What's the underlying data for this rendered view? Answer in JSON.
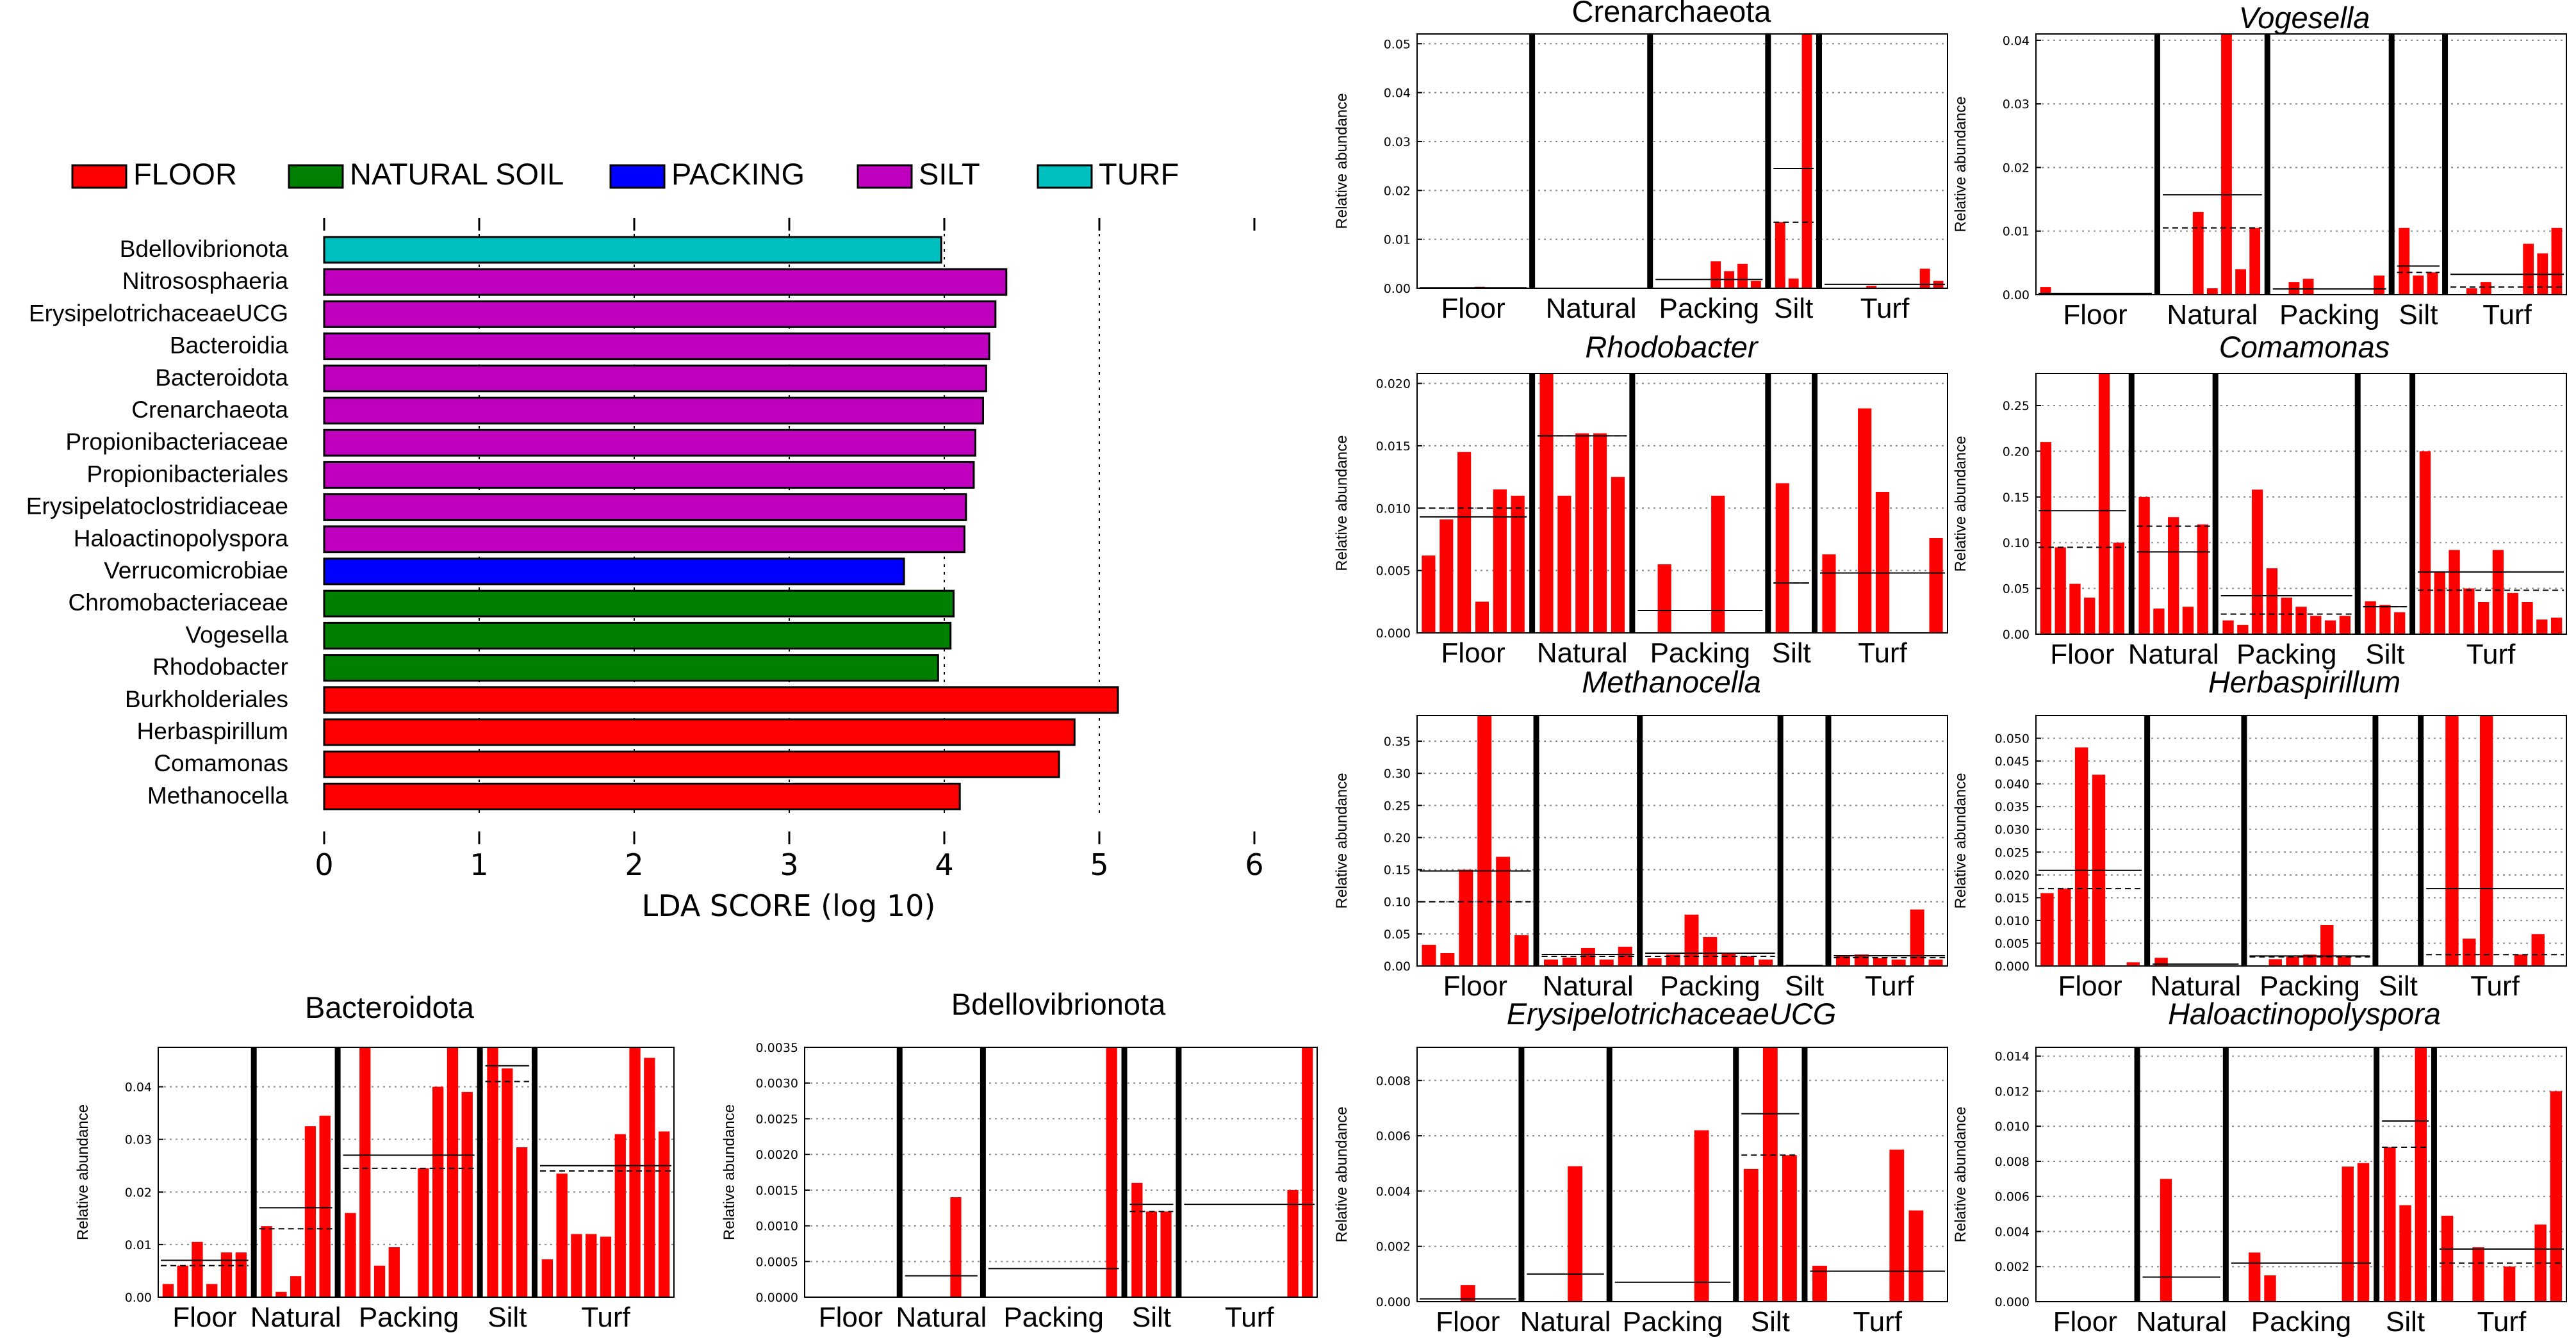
{
  "colors": {
    "FLOOR": "#ff0000",
    "NATURAL SOIL": "#008000",
    "PACKING": "#0000ff",
    "SILT": "#bf00bf",
    "TURF": "#00bfbf",
    "bar": "#ff0000"
  },
  "chart_data": [
    {
      "type": "bar",
      "orientation": "horizontal",
      "title": "",
      "xlabel": "LDA SCORE (log 10)",
      "xlim": [
        0,
        6
      ],
      "xticks": [
        0,
        1,
        2,
        3,
        4,
        5,
        6
      ],
      "legend": {
        "placement": "top",
        "items": [
          "FLOOR",
          "NATURAL SOIL",
          "PACKING",
          "SILT",
          "TURF"
        ]
      },
      "categories": [
        "Bdellovibrionota",
        "Nitrososphaeria",
        "ErysipelotrichaceaeUCG",
        "Bacteroidia",
        "Bacteroidota",
        "Crenarchaeota",
        "Propionibacteriaceae",
        "Propionibacteriales",
        "Erysipelatoclostridiaceae",
        "Haloactinopolyspora",
        "Verrucomicrobiae",
        "Chromobacteriaceae",
        "Vogesella",
        "Rhodobacter",
        "Burkholderiales",
        "Herbaspirillum",
        "Comamonas",
        "Methanocella"
      ],
      "values": [
        3.98,
        4.4,
        4.33,
        4.29,
        4.27,
        4.25,
        4.2,
        4.19,
        4.14,
        4.13,
        3.74,
        4.06,
        4.04,
        3.96,
        5.12,
        4.84,
        4.74,
        4.1
      ],
      "groups": [
        "TURF",
        "SILT",
        "SILT",
        "SILT",
        "SILT",
        "SILT",
        "SILT",
        "SILT",
        "SILT",
        "SILT",
        "PACKING",
        "NATURAL SOIL",
        "NATURAL SOIL",
        "NATURAL SOIL",
        "FLOOR",
        "FLOOR",
        "FLOOR",
        "FLOOR"
      ]
    },
    {
      "type": "bar",
      "title": "Crenarchaeota",
      "italic": false,
      "ylabel": "Relative abundance",
      "ylim": [
        0,
        0.052
      ],
      "yticks": [
        0.0,
        0.01,
        0.02,
        0.03,
        0.04,
        0.05
      ],
      "ytick_labels": [
        "0.00",
        "0.01",
        "0.02",
        "0.03",
        "0.04",
        "0.05"
      ],
      "groups": [
        "Floor",
        "Natural",
        "Packing",
        "Silt",
        "Turf"
      ],
      "samples": [
        [
          0,
          0,
          0,
          0,
          0.0003,
          0,
          0,
          0
        ],
        [
          0,
          0,
          0,
          0,
          0,
          0,
          0,
          0
        ],
        [
          0,
          0,
          0,
          0,
          0.0055,
          0.0035,
          0.005,
          0.0015
        ],
        [
          0.0135,
          0.002,
          0.052
        ],
        [
          0,
          0,
          0,
          0.0005,
          0,
          0,
          0,
          0.004,
          0.0015
        ]
      ],
      "mean": [
        0.0001,
        0,
        0.0018,
        0.0245,
        0.0008
      ],
      "median": [
        0,
        0,
        0,
        0.0135,
        0
      ]
    },
    {
      "type": "bar",
      "title": "Vogesella",
      "italic": true,
      "ylabel": "Relative abundance",
      "ylim": [
        0,
        0.041
      ],
      "yticks": [
        0.0,
        0.01,
        0.02,
        0.03,
        0.04
      ],
      "ytick_labels": [
        "0.00",
        "0.01",
        "0.02",
        "0.03",
        "0.04"
      ],
      "groups": [
        "Floor",
        "Natural",
        "Packing",
        "Silt",
        "Turf"
      ],
      "samples": [
        [
          0.0012,
          0,
          0,
          0,
          0,
          0,
          0,
          0
        ],
        [
          0,
          0,
          0.013,
          0.001,
          0.041,
          0.004,
          0.0105
        ],
        [
          0,
          0.002,
          0.0025,
          0,
          0,
          0,
          0,
          0.003
        ],
        [
          0.0105,
          0.003,
          0.0035
        ],
        [
          0,
          0.001,
          0.002,
          0,
          0,
          0.008,
          0.0065,
          0.0105
        ]
      ],
      "mean": [
        0.0002,
        0.0157,
        0.0009,
        0.0045,
        0.0032
      ],
      "median": [
        0,
        0.0105,
        0,
        0.0035,
        0.0012
      ]
    },
    {
      "type": "bar",
      "title": "Rhodobacter",
      "italic": true,
      "ylabel": "Relative abundance",
      "ylim": [
        0,
        0.0208
      ],
      "yticks": [
        0.0,
        0.005,
        0.01,
        0.015,
        0.02
      ],
      "ytick_labels": [
        "0.000",
        "0.005",
        "0.010",
        "0.015",
        "0.020"
      ],
      "groups": [
        "Floor",
        "Natural",
        "Packing",
        "Silt",
        "Turf"
      ],
      "samples": [
        [
          0.0062,
          0.0091,
          0.0145,
          0.0025,
          0.0115,
          0.011
        ],
        [
          0.021,
          0.011,
          0.016,
          0.016,
          0.0125
        ],
        [
          0,
          0.0055,
          0,
          0,
          0.011,
          0,
          0
        ],
        [
          0.012,
          0
        ],
        [
          0.0063,
          0,
          0.018,
          0.0113,
          0,
          0,
          0.0076
        ]
      ],
      "mean": [
        0.0093,
        0.0158,
        0.0018,
        0.004,
        0.0048
      ],
      "median": [
        0.01,
        0.0158,
        0,
        0.004,
        0.0048
      ]
    },
    {
      "type": "bar",
      "title": "Comamonas",
      "italic": true,
      "ylabel": "Relative abundance",
      "ylim": [
        0,
        0.285
      ],
      "yticks": [
        0.0,
        0.05,
        0.1,
        0.15,
        0.2,
        0.25
      ],
      "ytick_labels": [
        "0.00",
        "0.05",
        "0.10",
        "0.15",
        "0.20",
        "0.25"
      ],
      "groups": [
        "Floor",
        "Natural",
        "Packing",
        "Silt",
        "Turf"
      ],
      "samples": [
        [
          0.21,
          0.095,
          0.055,
          0.04,
          0.285,
          0.1
        ],
        [
          0.15,
          0.028,
          0.128,
          0.03,
          0.12
        ],
        [
          0.015,
          0.01,
          0.158,
          0.072,
          0.04,
          0.03,
          0.02,
          0.015,
          0.02
        ],
        [
          0.036,
          0.032,
          0.024
        ],
        [
          0.2,
          0.068,
          0.092,
          0.05,
          0.035,
          0.092,
          0.045,
          0.035,
          0.016,
          0.018
        ]
      ],
      "mean": [
        0.135,
        0.09,
        0.042,
        0.03,
        0.068
      ],
      "median": [
        0.095,
        0.118,
        0.022,
        0.03,
        0.048
      ]
    },
    {
      "type": "bar",
      "title": "Methanocella",
      "italic": true,
      "ylabel": "Relative abundance",
      "ylim": [
        0,
        0.39
      ],
      "yticks": [
        0.0,
        0.05,
        0.1,
        0.15,
        0.2,
        0.25,
        0.3,
        0.35
      ],
      "ytick_labels": [
        "0.00",
        "0.05",
        "0.10",
        "0.15",
        "0.20",
        "0.25",
        "0.30",
        "0.35"
      ],
      "groups": [
        "Floor",
        "Natural",
        "Packing",
        "Silt",
        "Turf"
      ],
      "samples": [
        [
          0.033,
          0.02,
          0.15,
          0.39,
          0.17,
          0.048
        ],
        [
          0.01,
          0.013,
          0.028,
          0.01,
          0.03
        ],
        [
          0.012,
          0.018,
          0.08,
          0.045,
          0.02,
          0.015,
          0.01
        ],
        [
          0,
          0
        ],
        [
          0.015,
          0.018,
          0.012,
          0.01,
          0.088,
          0.01
        ]
      ],
      "mean": [
        0.148,
        0.018,
        0.02,
        0.001,
        0.016
      ],
      "median": [
        0.1,
        0.015,
        0.015,
        0,
        0.013
      ]
    },
    {
      "type": "bar",
      "title": "Herbaspirillum",
      "italic": true,
      "ylabel": "Relative abundance",
      "ylim": [
        0,
        0.055
      ],
      "yticks": [
        0.0,
        0.005,
        0.01,
        0.015,
        0.02,
        0.025,
        0.03,
        0.035,
        0.04,
        0.045,
        0.05
      ],
      "ytick_labels": [
        "0.000",
        "0.005",
        "0.010",
        "0.015",
        "0.020",
        "0.025",
        "0.030",
        "0.035",
        "0.040",
        "0.045",
        "0.050"
      ],
      "groups": [
        "Floor",
        "Natural",
        "Packing",
        "Silt",
        "Turf"
      ],
      "samples": [
        [
          0.016,
          0.017,
          0.048,
          0.042,
          0,
          0.0008
        ],
        [
          0.0018,
          0,
          0,
          0,
          0
        ],
        [
          0,
          0.0015,
          0.002,
          0.0025,
          0.009,
          0.002,
          0
        ],
        [
          0,
          0
        ],
        [
          0,
          0.055,
          0.006,
          0.055,
          0,
          0.0025,
          0.007,
          0
        ]
      ],
      "mean": [
        0.021,
        0.0004,
        0.0022,
        0,
        0.017
      ],
      "median": [
        0.017,
        0,
        0.002,
        0,
        0.0025
      ]
    },
    {
      "type": "bar",
      "title": "ErysipelotrichaceaeUCG",
      "italic": true,
      "ylabel": "Relative abundance",
      "ylim": [
        0,
        0.0092
      ],
      "yticks": [
        0.0,
        0.002,
        0.004,
        0.006,
        0.008
      ],
      "ytick_labels": [
        "0.000",
        "0.002",
        "0.004",
        "0.006",
        "0.008"
      ],
      "groups": [
        "Floor",
        "Natural",
        "Packing",
        "Silt",
        "Turf"
      ],
      "samples": [
        [
          0,
          0,
          0.0006,
          0,
          0
        ],
        [
          0,
          0,
          0.0049,
          0
        ],
        [
          0,
          0,
          0,
          0,
          0.0062,
          0
        ],
        [
          0.0048,
          0.0092,
          0.0053
        ],
        [
          0.0013,
          0,
          0,
          0,
          0.0055,
          0.0033,
          0
        ]
      ],
      "mean": [
        0.0001,
        0.001,
        0.0007,
        0.0068,
        0.0011
      ],
      "median": [
        0,
        0,
        0,
        0.0053,
        0
      ]
    },
    {
      "type": "bar",
      "title": "Haloactinopolyspora",
      "italic": true,
      "ylabel": "Relative abundance",
      "ylim": [
        0,
        0.0145
      ],
      "yticks": [
        0.0,
        0.002,
        0.004,
        0.006,
        0.008,
        0.01,
        0.012,
        0.014
      ],
      "ytick_labels": [
        "0.000",
        "0.002",
        "0.004",
        "0.006",
        "0.008",
        "0.010",
        "0.012",
        "0.014"
      ],
      "groups": [
        "Floor",
        "Natural",
        "Packing",
        "Silt",
        "Turf"
      ],
      "samples": [
        [
          0,
          0,
          0,
          0,
          0,
          0
        ],
        [
          0,
          0.007,
          0,
          0,
          0
        ],
        [
          0,
          0.0028,
          0.0015,
          0,
          0,
          0,
          0,
          0.0077,
          0.0079
        ],
        [
          0.0088,
          0.0055,
          0.0145
        ],
        [
          0.0049,
          0,
          0.0031,
          0,
          0.002,
          0,
          0.0044,
          0.012
        ]
      ],
      "mean": [
        0,
        0.0014,
        0.0022,
        0.0103,
        0.003
      ],
      "median": [
        0,
        0,
        0,
        0.0088,
        0.0022
      ]
    },
    {
      "type": "bar",
      "title": "Bacteroidota",
      "italic": false,
      "ylabel": "Relative abundance",
      "ylim": [
        0,
        0.0475
      ],
      "yticks": [
        0.0,
        0.01,
        0.02,
        0.03,
        0.04
      ],
      "ytick_labels": [
        "0.00",
        "0.01",
        "0.02",
        "0.03",
        "0.04"
      ],
      "groups": [
        "Floor",
        "Natural",
        "Packing",
        "Silt",
        "Turf"
      ],
      "samples": [
        [
          0.0025,
          0.006,
          0.0105,
          0.0025,
          0.0085,
          0.0085
        ],
        [
          0.0135,
          0.001,
          0.004,
          0.0325,
          0.0345
        ],
        [
          0.016,
          0.0475,
          0.006,
          0.0095,
          0,
          0.0245,
          0.04,
          0.0475,
          0.039
        ],
        [
          0.0475,
          0.0435,
          0.0285
        ],
        [
          0.0072,
          0.0235,
          0.012,
          0.012,
          0.0115,
          0.031,
          0.0475,
          0.0455,
          0.0315
        ]
      ],
      "mean": [
        0.007,
        0.017,
        0.027,
        0.044,
        0.025
      ],
      "median": [
        0.006,
        0.013,
        0.0245,
        0.041,
        0.024
      ]
    },
    {
      "type": "bar",
      "title": "Bdellovibrionota",
      "italic": false,
      "ylabel": "Relative abundance",
      "ylim": [
        0,
        0.0035
      ],
      "yticks": [
        0.0,
        0.0005,
        0.001,
        0.0015,
        0.002,
        0.0025,
        0.003,
        0.0035
      ],
      "ytick_labels": [
        "0.0000",
        "0.0005",
        "0.0010",
        "0.0015",
        "0.0020",
        "0.0025",
        "0.0030",
        "0.0035"
      ],
      "groups": [
        "Floor",
        "Natural",
        "Packing",
        "Silt",
        "Turf"
      ],
      "samples": [
        [
          0,
          0,
          0,
          0,
          0,
          0
        ],
        [
          0,
          0,
          0,
          0.0014,
          0
        ],
        [
          0,
          0,
          0,
          0,
          0,
          0,
          0,
          0,
          0.0035
        ],
        [
          0.0016,
          0.0012,
          0.0012
        ],
        [
          0,
          0,
          0,
          0,
          0,
          0,
          0,
          0.0015,
          0.0035
        ]
      ],
      "mean": [
        0,
        0.0003,
        0.0004,
        0.0013,
        0.0013
      ],
      "median": [
        0,
        0,
        0,
        0.0012,
        0
      ]
    }
  ]
}
